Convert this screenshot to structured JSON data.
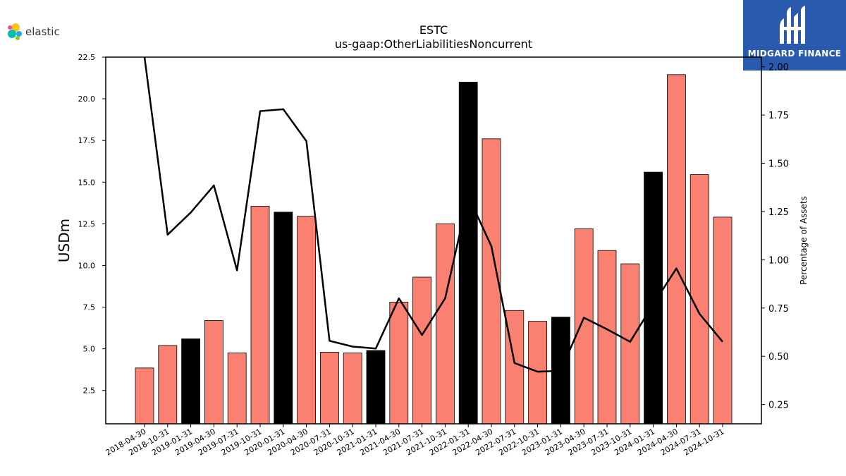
{
  "header": {
    "left_logo": {
      "icon": "elastic-logo-icon",
      "text": "elastic"
    },
    "right_logo": {
      "icon": "midgard-finance-logo-icon",
      "text": "MIDGARD FINANCE",
      "bg_color": "#2a5aad"
    }
  },
  "chart_data": {
    "type": "bar",
    "title": "ESTC",
    "subtitle": "us-gaap:OtherLiabilitiesNoncurrent",
    "ylabel": "USDm",
    "y2label": "Percentage of Assets",
    "ylim": [
      0.5,
      22.5
    ],
    "y2lim": [
      0.15,
      2.05
    ],
    "yticks": [
      "2.5",
      "5.0",
      "7.5",
      "10.0",
      "12.5",
      "15.0",
      "17.5",
      "20.0",
      "22.5"
    ],
    "y2ticks": [
      "0.25",
      "0.50",
      "0.75",
      "1.00",
      "1.25",
      "1.50",
      "1.75",
      "2.00"
    ],
    "categories": [
      "2018-04-30",
      "2018-10-31",
      "2019-01-31",
      "2019-04-30",
      "2019-07-31",
      "2019-10-31",
      "2020-01-31",
      "2020-04-30",
      "2020-07-31",
      "2020-10-31",
      "2021-01-31",
      "2021-04-30",
      "2021-07-31",
      "2021-10-31",
      "2022-01-31",
      "2022-04-30",
      "2022-07-31",
      "2022-10-31",
      "2023-01-31",
      "2023-04-30",
      "2023-07-31",
      "2023-10-31",
      "2024-01-31",
      "2024-04-30",
      "2024-07-31",
      "2024-10-31"
    ],
    "series": [
      {
        "kind": "bar",
        "values": [
          3.85,
          5.2,
          5.6,
          6.7,
          4.75,
          13.55,
          13.2,
          12.95,
          4.8,
          4.75,
          4.9,
          7.8,
          9.3,
          12.5,
          21.0,
          17.6,
          7.3,
          6.65,
          6.9,
          12.2,
          10.9,
          10.1,
          15.6,
          21.45,
          15.45,
          12.9
        ],
        "colors": [
          "#fa8072",
          "#fa8072",
          "#000000",
          "#fa8072",
          "#fa8072",
          "#fa8072",
          "#000000",
          "#fa8072",
          "#fa8072",
          "#fa8072",
          "#000000",
          "#fa8072",
          "#fa8072",
          "#fa8072",
          "#000000",
          "#fa8072",
          "#fa8072",
          "#fa8072",
          "#000000",
          "#fa8072",
          "#fa8072",
          "#fa8072",
          "#000000",
          "#fa8072",
          "#fa8072",
          "#fa8072"
        ]
      },
      {
        "kind": "line",
        "axis": "right",
        "color": "#000000",
        "values": [
          2.05,
          1.13,
          1.245,
          1.385,
          0.945,
          1.77,
          1.78,
          1.615,
          0.58,
          0.55,
          0.54,
          0.8,
          0.61,
          0.8,
          1.33,
          1.07,
          0.465,
          0.42,
          0.425,
          0.7,
          0.64,
          0.575,
          0.77,
          0.955,
          0.72,
          0.575
        ]
      }
    ],
    "grid": false,
    "legend": "none"
  }
}
